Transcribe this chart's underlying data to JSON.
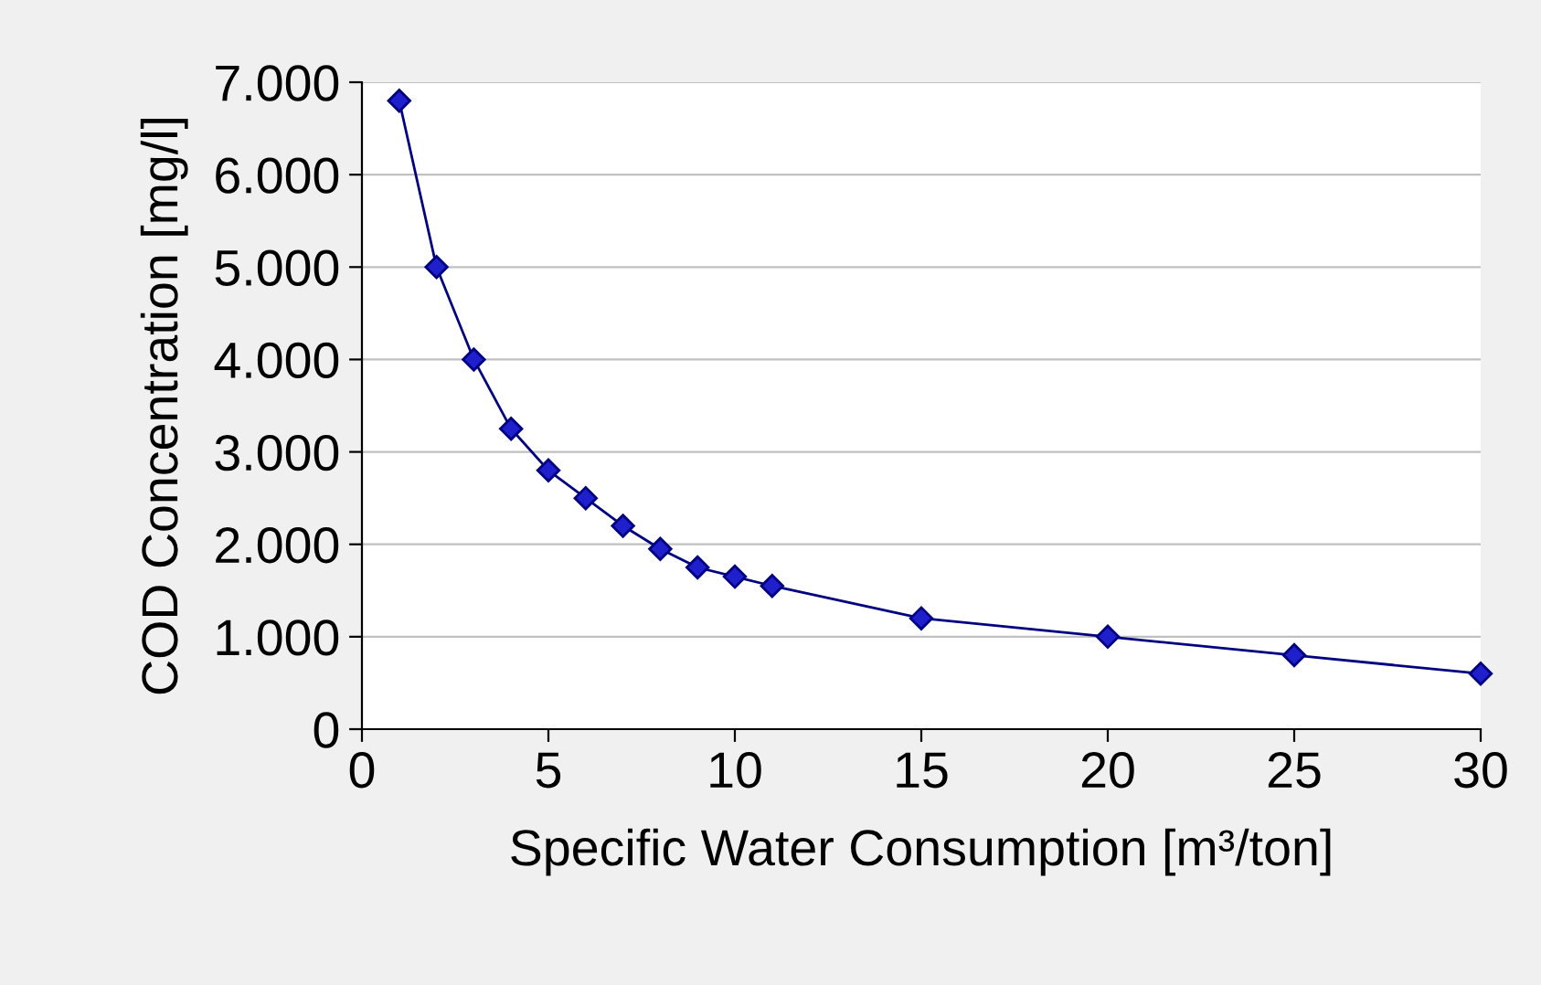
{
  "chart_data": {
    "type": "line",
    "xlabel": "Specific Water Consumption [m³/ton]",
    "ylabel": "COD Concentration [mg/l]",
    "x": [
      1,
      2,
      3,
      4,
      5,
      6,
      7,
      8,
      9,
      10,
      11,
      15,
      20,
      25,
      30
    ],
    "series": [
      {
        "color": "#1f1fcc",
        "values": [
          6800,
          5000,
          4000,
          3250,
          2800,
          2500,
          2200,
          1950,
          1750,
          1650,
          1550,
          1200,
          1000,
          800,
          600
        ]
      }
    ],
    "xlim": [
      0,
      30
    ],
    "xticks": [
      0,
      5,
      10,
      15,
      20,
      25,
      30
    ],
    "ylim": [
      0,
      7000
    ],
    "yticks": [
      0,
      {
        "value": 1000,
        "label": "1.000"
      },
      {
        "value": 2000,
        "label": "2.000"
      },
      {
        "value": 3000,
        "label": "3.000"
      },
      {
        "value": 4000,
        "label": "4.000"
      },
      {
        "value": 5000,
        "label": "5.000"
      },
      {
        "value": 6000,
        "label": "6.000"
      },
      {
        "value": 7000,
        "label": "7.000"
      }
    ],
    "grid": "y",
    "marker": "diamond",
    "line_style": "solid"
  }
}
